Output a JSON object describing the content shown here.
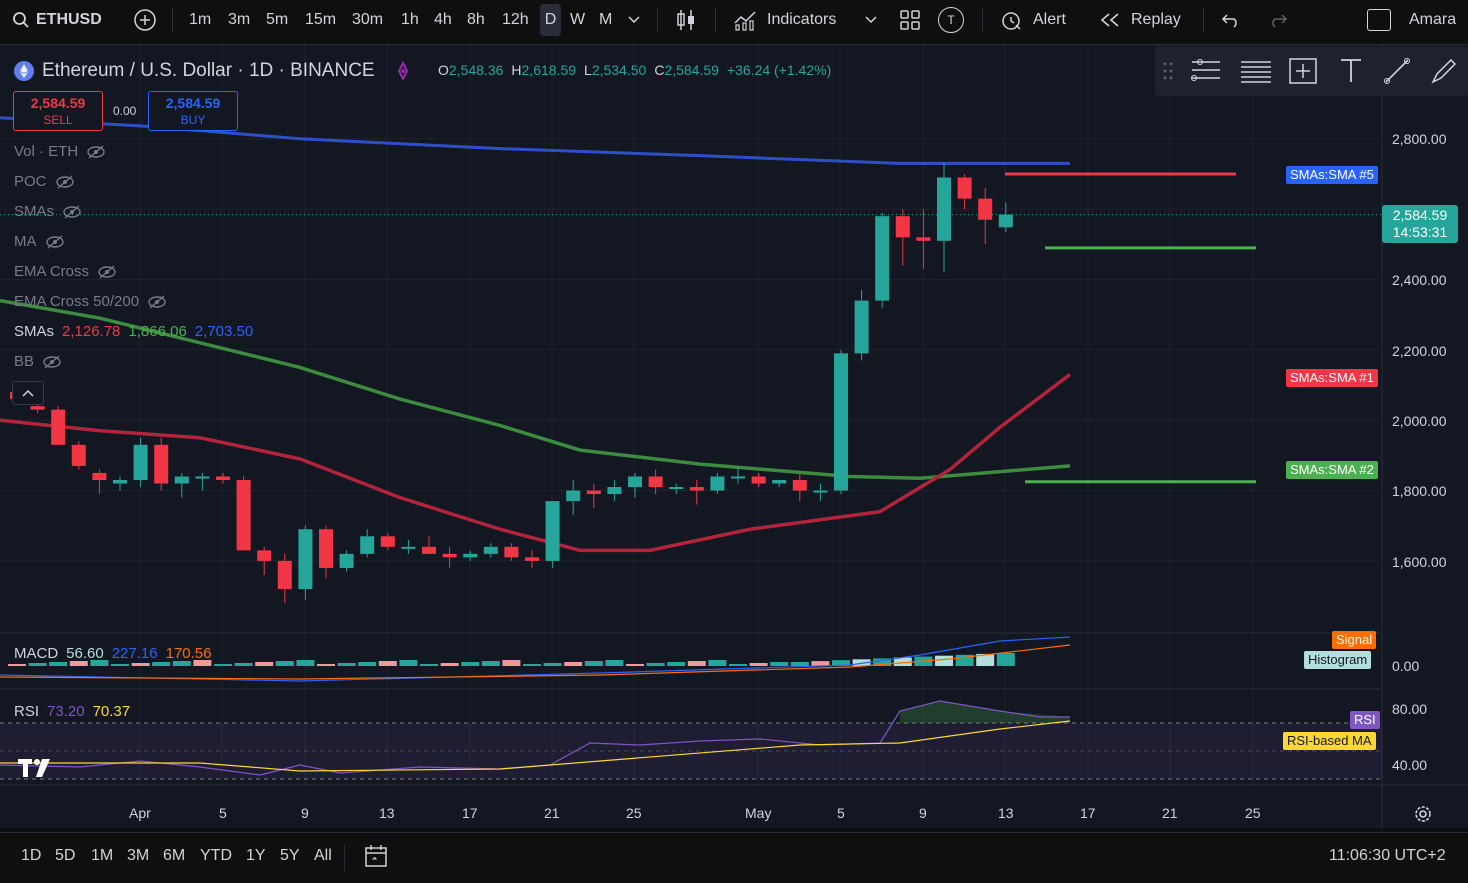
{
  "topbar": {
    "symbol": "ETHUSD",
    "intervals": [
      "1m",
      "3m",
      "5m",
      "15m",
      "30m",
      "1h",
      "4h",
      "8h",
      "12h",
      "D",
      "W",
      "M"
    ],
    "active_interval": "D",
    "indicators_label": "Indicators",
    "alert_label": "Alert",
    "replay_label": "Replay",
    "user_label": "Amara",
    "indicator_template_letter": "T"
  },
  "header": {
    "title": "Ethereum / U.S. Dollar · 1D · BINANCE",
    "o_label": "O",
    "o_value": "2,548.36",
    "h_label": "H",
    "h_value": "2,618.59",
    "l_label": "L",
    "l_value": "2,534.50",
    "c_label": "C",
    "c_value": "2,584.59",
    "change": "+36.24 (+1.42%)"
  },
  "trade": {
    "sell_price": "2,584.59",
    "sell_label": "SELL",
    "spread": "0.00",
    "buy_price": "2,584.59",
    "buy_label": "BUY"
  },
  "legends": [
    {
      "label": "Vol · ETH"
    },
    {
      "label": "POC"
    },
    {
      "label": "SMAs"
    },
    {
      "label": "MA"
    },
    {
      "label": "EMA Cross"
    },
    {
      "label": "EMA Cross 50/200"
    }
  ],
  "smas_legend": {
    "label": "SMAs",
    "v1": "2,126.78",
    "v2": "1,866.06",
    "v3": "2,703.50"
  },
  "bb_legend": {
    "label": "BB"
  },
  "macd_legend": {
    "label": "MACD",
    "v1": "56.60",
    "v2": "227.16",
    "v3": "170.56"
  },
  "rsi_legend": {
    "label": "RSI",
    "v1": "73.20",
    "v2": "70.37"
  },
  "price_axis": {
    "labels": [
      "2,800.00",
      "2,400.00",
      "2,200.00",
      "2,000.00",
      "1,800.00",
      "1,600.00"
    ],
    "current_price": "2,584.59",
    "countdown": "14:53:31",
    "macd_zero": "0.00",
    "rsi_80": "80.00",
    "rsi_40": "40.00"
  },
  "tags": {
    "sma5": "SMAs:SMA #5",
    "sma1": "SMAs:SMA #1",
    "sma2": "SMAs:SMA #2",
    "signal": "Signal",
    "histogram": "Histogram",
    "rsi": "RSI",
    "rsi_ma": "RSI-based MA"
  },
  "time_axis": [
    "Apr",
    "5",
    "9",
    "13",
    "17",
    "21",
    "25",
    "May",
    "5",
    "9",
    "13",
    "17",
    "21",
    "25"
  ],
  "bottombar": {
    "ranges": [
      "1D",
      "5D",
      "1M",
      "3M",
      "6M",
      "YTD",
      "1Y",
      "5Y",
      "All"
    ],
    "clock": "11:06:30 UTC+2"
  },
  "chart_data": {
    "type": "candlestick",
    "symbol": "ETHUSD",
    "timeframe": "1D",
    "ylim": [
      1450,
      2900
    ],
    "candles_ohlc": [
      [
        2080,
        2090,
        2050,
        2060
      ],
      [
        2040,
        2060,
        2020,
        2030
      ],
      [
        2030,
        2040,
        1930,
        1930
      ],
      [
        1930,
        1940,
        1860,
        1870
      ],
      [
        1850,
        1860,
        1790,
        1830
      ],
      [
        1820,
        1840,
        1800,
        1830
      ],
      [
        1830,
        1950,
        1810,
        1930
      ],
      [
        1930,
        1950,
        1800,
        1820
      ],
      [
        1820,
        1850,
        1780,
        1840
      ],
      [
        1840,
        1850,
        1800,
        1840
      ],
      [
        1840,
        1850,
        1820,
        1830
      ],
      [
        1830,
        1840,
        1630,
        1630
      ],
      [
        1630,
        1640,
        1560,
        1600
      ],
      [
        1600,
        1620,
        1480,
        1520
      ],
      [
        1520,
        1700,
        1490,
        1690
      ],
      [
        1690,
        1700,
        1550,
        1580
      ],
      [
        1580,
        1630,
        1570,
        1620
      ],
      [
        1620,
        1690,
        1610,
        1670
      ],
      [
        1670,
        1680,
        1630,
        1640
      ],
      [
        1640,
        1660,
        1620,
        1640
      ],
      [
        1640,
        1670,
        1620,
        1620
      ],
      [
        1620,
        1640,
        1580,
        1610
      ],
      [
        1610,
        1630,
        1600,
        1620
      ],
      [
        1620,
        1650,
        1610,
        1640
      ],
      [
        1640,
        1650,
        1600,
        1610
      ],
      [
        1610,
        1630,
        1580,
        1600
      ],
      [
        1600,
        1770,
        1580,
        1770
      ],
      [
        1770,
        1830,
        1730,
        1800
      ],
      [
        1800,
        1820,
        1750,
        1790
      ],
      [
        1790,
        1830,
        1770,
        1810
      ],
      [
        1810,
        1850,
        1780,
        1840
      ],
      [
        1840,
        1860,
        1790,
        1810
      ],
      [
        1810,
        1820,
        1790,
        1810
      ],
      [
        1810,
        1830,
        1760,
        1800
      ],
      [
        1800,
        1850,
        1790,
        1840
      ],
      [
        1840,
        1870,
        1820,
        1840
      ],
      [
        1840,
        1850,
        1810,
        1820
      ],
      [
        1820,
        1830,
        1810,
        1830
      ],
      [
        1830,
        1850,
        1770,
        1800
      ],
      [
        1800,
        1820,
        1770,
        1800
      ],
      [
        1800,
        2200,
        1790,
        2190
      ],
      [
        2190,
        2370,
        2170,
        2340
      ],
      [
        2340,
        2590,
        2320,
        2580
      ],
      [
        2580,
        2600,
        2440,
        2520
      ],
      [
        2520,
        2600,
        2430,
        2510
      ],
      [
        2510,
        2730,
        2420,
        2690
      ],
      [
        2690,
        2700,
        2600,
        2630
      ],
      [
        2630,
        2660,
        2500,
        2570
      ],
      [
        2548.36,
        2618.59,
        2534.5,
        2584.59
      ]
    ]
  }
}
